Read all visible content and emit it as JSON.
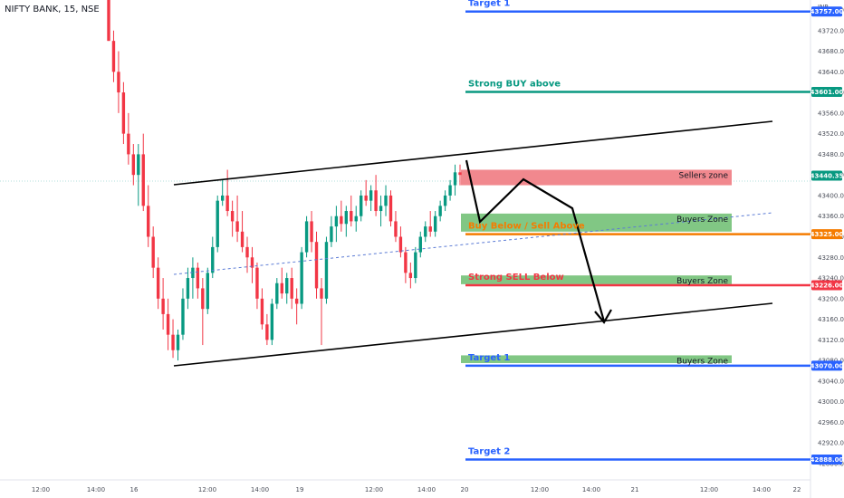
{
  "header": {
    "title": "NIFTY BANK, 15, NSE",
    "currency": "INR"
  },
  "chart_data": {
    "type": "candlestick",
    "title": "NIFTY BANK, 15, NSE",
    "ylim": [
      42860,
      43800
    ],
    "y_ticks": [
      42880,
      42920,
      42960,
      43000,
      43040,
      43080,
      43120,
      43160,
      43200,
      43240,
      43280,
      43320,
      43360,
      43400,
      43440,
      43480,
      43520,
      43560,
      43600,
      43640,
      43680,
      43720,
      43760
    ],
    "x_ticks": [
      "12:00",
      "14:00",
      "16",
      "12:00",
      "14:00",
      "19",
      "12:00",
      "14:00",
      "20",
      "12:00",
      "14:00",
      "21",
      "12:00",
      "14:00",
      "22"
    ],
    "last_price": 43440.35,
    "colors": {
      "up": "#089981",
      "down": "#f23645",
      "blue": "#2962ff",
      "green": "#089981",
      "red": "#f23645",
      "orange": "#f57c00",
      "sell_zone": "#f1888e",
      "buy_zone": "#81c784"
    },
    "levels": [
      {
        "label": "Target 1",
        "price": 43757.0,
        "price_label": "43757.00",
        "color": "#2962ff"
      },
      {
        "label": "Strong BUY above",
        "price": 43601.0,
        "price_label": "43601.00",
        "color": "#089981"
      },
      {
        "label": "Buy Below / Sell Above",
        "price": 43325.0,
        "price_label": "43325.00",
        "color": "#f57c00"
      },
      {
        "label": "Strong SELL Below",
        "price": 43226.0,
        "price_label": "43226.00",
        "color": "#f23645"
      },
      {
        "label": "Target 1",
        "price": 43070.0,
        "price_label": "43070.00",
        "color": "#2962ff"
      },
      {
        "label": "Target 2",
        "price": 42888.0,
        "price_label": "42888.00",
        "color": "#2962ff"
      }
    ],
    "zones": [
      {
        "label": "Sellers zone",
        "top": 43450,
        "bottom": 43420,
        "kind": "sell"
      },
      {
        "label": "Buyers Zone",
        "top": 43365,
        "bottom": 43330,
        "kind": "buy"
      },
      {
        "label": "Buyers Zone",
        "top": 43245,
        "bottom": 43228,
        "kind": "buy"
      },
      {
        "label": "Buyers Zone",
        "top": 43090,
        "bottom": 43075,
        "kind": "buy"
      }
    ],
    "current_price_label": "43440.35",
    "candles": [
      {
        "o": 43790,
        "h": 43800,
        "l": 43700,
        "c": 43700
      },
      {
        "o": 43700,
        "h": 43720,
        "l": 43620,
        "c": 43640
      },
      {
        "o": 43640,
        "h": 43680,
        "l": 43560,
        "c": 43600
      },
      {
        "o": 43600,
        "h": 43620,
        "l": 43500,
        "c": 43520
      },
      {
        "o": 43520,
        "h": 43560,
        "l": 43460,
        "c": 43480
      },
      {
        "o": 43480,
        "h": 43500,
        "l": 43420,
        "c": 43440
      },
      {
        "o": 43440,
        "h": 43500,
        "l": 43380,
        "c": 43480
      },
      {
        "o": 43480,
        "h": 43520,
        "l": 43370,
        "c": 43380
      },
      {
        "o": 43380,
        "h": 43420,
        "l": 43300,
        "c": 43320
      },
      {
        "o": 43320,
        "h": 43340,
        "l": 43240,
        "c": 43260
      },
      {
        "o": 43260,
        "h": 43280,
        "l": 43180,
        "c": 43200
      },
      {
        "o": 43200,
        "h": 43240,
        "l": 43140,
        "c": 43170
      },
      {
        "o": 43170,
        "h": 43200,
        "l": 43100,
        "c": 43130
      },
      {
        "o": 43130,
        "h": 43160,
        "l": 43085,
        "c": 43100
      },
      {
        "o": 43100,
        "h": 43140,
        "l": 43080,
        "c": 43130
      },
      {
        "o": 43130,
        "h": 43220,
        "l": 43120,
        "c": 43200
      },
      {
        "o": 43200,
        "h": 43260,
        "l": 43180,
        "c": 43240
      },
      {
        "o": 43240,
        "h": 43280,
        "l": 43200,
        "c": 43260
      },
      {
        "o": 43260,
        "h": 43270,
        "l": 43200,
        "c": 43220
      },
      {
        "o": 43220,
        "h": 43240,
        "l": 43110,
        "c": 43180
      },
      {
        "o": 43180,
        "h": 43260,
        "l": 43170,
        "c": 43250
      },
      {
        "o": 43250,
        "h": 43320,
        "l": 43240,
        "c": 43300
      },
      {
        "o": 43300,
        "h": 43400,
        "l": 43290,
        "c": 43390
      },
      {
        "o": 43390,
        "h": 43430,
        "l": 43380,
        "c": 43400
      },
      {
        "o": 43400,
        "h": 43450,
        "l": 43360,
        "c": 43370
      },
      {
        "o": 43370,
        "h": 43390,
        "l": 43320,
        "c": 43350
      },
      {
        "o": 43350,
        "h": 43400,
        "l": 43310,
        "c": 43330
      },
      {
        "o": 43330,
        "h": 43370,
        "l": 43290,
        "c": 43300
      },
      {
        "o": 43300,
        "h": 43320,
        "l": 43250,
        "c": 43280
      },
      {
        "o": 43280,
        "h": 43300,
        "l": 43230,
        "c": 43260
      },
      {
        "o": 43260,
        "h": 43270,
        "l": 43180,
        "c": 43200
      },
      {
        "o": 43200,
        "h": 43220,
        "l": 43140,
        "c": 43150
      },
      {
        "o": 43150,
        "h": 43170,
        "l": 43110,
        "c": 43120
      },
      {
        "o": 43120,
        "h": 43200,
        "l": 43110,
        "c": 43190
      },
      {
        "o": 43190,
        "h": 43240,
        "l": 43180,
        "c": 43230
      },
      {
        "o": 43230,
        "h": 43260,
        "l": 43200,
        "c": 43210
      },
      {
        "o": 43210,
        "h": 43250,
        "l": 43190,
        "c": 43240
      },
      {
        "o": 43240,
        "h": 43260,
        "l": 43180,
        "c": 43200
      },
      {
        "o": 43200,
        "h": 43220,
        "l": 43150,
        "c": 43190
      },
      {
        "o": 43190,
        "h": 43300,
        "l": 43180,
        "c": 43290
      },
      {
        "o": 43290,
        "h": 43360,
        "l": 43280,
        "c": 43350
      },
      {
        "o": 43350,
        "h": 43370,
        "l": 43290,
        "c": 43310
      },
      {
        "o": 43310,
        "h": 43330,
        "l": 43200,
        "c": 43220
      },
      {
        "o": 43220,
        "h": 43240,
        "l": 43110,
        "c": 43200
      },
      {
        "o": 43200,
        "h": 43320,
        "l": 43190,
        "c": 43310
      },
      {
        "o": 43310,
        "h": 43360,
        "l": 43300,
        "c": 43340
      },
      {
        "o": 43340,
        "h": 43380,
        "l": 43310,
        "c": 43360
      },
      {
        "o": 43360,
        "h": 43390,
        "l": 43330,
        "c": 43345
      },
      {
        "o": 43345,
        "h": 43380,
        "l": 43320,
        "c": 43370
      },
      {
        "o": 43370,
        "h": 43400,
        "l": 43340,
        "c": 43350
      },
      {
        "o": 43350,
        "h": 43380,
        "l": 43330,
        "c": 43360
      },
      {
        "o": 43360,
        "h": 43410,
        "l": 43350,
        "c": 43400
      },
      {
        "o": 43400,
        "h": 43430,
        "l": 43380,
        "c": 43390
      },
      {
        "o": 43390,
        "h": 43420,
        "l": 43370,
        "c": 43410
      },
      {
        "o": 43410,
        "h": 43440,
        "l": 43360,
        "c": 43370
      },
      {
        "o": 43370,
        "h": 43400,
        "l": 43340,
        "c": 43380
      },
      {
        "o": 43380,
        "h": 43420,
        "l": 43360,
        "c": 43400
      },
      {
        "o": 43400,
        "h": 43410,
        "l": 43340,
        "c": 43350
      },
      {
        "o": 43350,
        "h": 43370,
        "l": 43310,
        "c": 43320
      },
      {
        "o": 43320,
        "h": 43340,
        "l": 43280,
        "c": 43290
      },
      {
        "o": 43290,
        "h": 43300,
        "l": 43230,
        "c": 43250
      },
      {
        "o": 43250,
        "h": 43270,
        "l": 43220,
        "c": 43240
      },
      {
        "o": 43240,
        "h": 43300,
        "l": 43230,
        "c": 43290
      },
      {
        "o": 43290,
        "h": 43330,
        "l": 43280,
        "c": 43320
      },
      {
        "o": 43320,
        "h": 43350,
        "l": 43310,
        "c": 43340
      },
      {
        "o": 43340,
        "h": 43370,
        "l": 43320,
        "c": 43330
      },
      {
        "o": 43330,
        "h": 43370,
        "l": 43320,
        "c": 43360
      },
      {
        "o": 43360,
        "h": 43390,
        "l": 43350,
        "c": 43380
      },
      {
        "o": 43380,
        "h": 43410,
        "l": 43370,
        "c": 43400
      },
      {
        "o": 43400,
        "h": 43430,
        "l": 43390,
        "c": 43420
      },
      {
        "o": 43420,
        "h": 43460,
        "l": 43400,
        "c": 43445
      },
      {
        "o": 43445,
        "h": 43460,
        "l": 43420,
        "c": 43440
      }
    ]
  }
}
